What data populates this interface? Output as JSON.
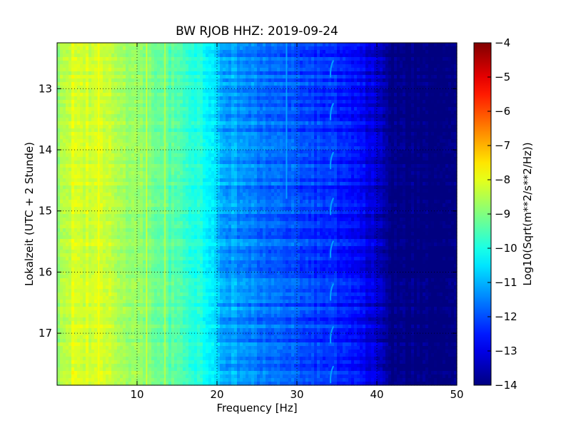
{
  "chart_data": {
    "type": "heatmap",
    "title": "BW RJOB HHZ: 2019-09-24",
    "xlabel": "Frequency [Hz]",
    "ylabel": "Lokalzeit (UTC + 2 Stunde)",
    "xlim": [
      0,
      50
    ],
    "ylim": [
      12.25,
      17.85
    ],
    "y_inverted": true,
    "x_ticks": [
      10,
      20,
      30,
      40,
      50
    ],
    "x_tick_labels": [
      "10",
      "20",
      "30",
      "40",
      "50"
    ],
    "y_ticks": [
      13,
      14,
      15,
      16,
      17
    ],
    "y_tick_labels": [
      "13",
      "14",
      "15",
      "16",
      "17"
    ],
    "grid": true,
    "colormap": "jet",
    "colorbar": {
      "label": "Log10(Sqrt(m**2/s**2/Hz))",
      "range": [
        -14,
        -4
      ],
      "ticks": [
        -4,
        -5,
        -6,
        -7,
        -8,
        -9,
        -10,
        -11,
        -12,
        -13,
        -14
      ],
      "tick_labels": [
        "−4",
        "−5",
        "−6",
        "−7",
        "−8",
        "−9",
        "−10",
        "−11",
        "−12",
        "−13",
        "−14"
      ]
    },
    "frequency_profile": {
      "frequency_hz": [
        0,
        2,
        5,
        10,
        15,
        19,
        20.5,
        25,
        30,
        35,
        39,
        41,
        42,
        50
      ],
      "level": [
        -8.8,
        -8.1,
        -8.2,
        -8.8,
        -9.5,
        -10.2,
        -11.0,
        -11.6,
        -12.0,
        -12.4,
        -13.0,
        -13.6,
        -14.0,
        -14.0
      ]
    },
    "features": [
      {
        "type": "line",
        "frequency_hz": 28.7,
        "time_start": 12.25,
        "time_end": 14.8,
        "level": -11.0
      },
      {
        "type": "line",
        "frequency_hz": 5.2,
        "time_start": 12.25,
        "time_end": 17.85,
        "level": -7.8
      },
      {
        "type": "line",
        "frequency_hz": 11.2,
        "time_start": 12.25,
        "time_end": 17.85,
        "level": -8.0
      },
      {
        "type": "line",
        "frequency_hz": 13.5,
        "time_start": 12.25,
        "time_end": 17.85,
        "level": -8.4
      },
      {
        "type": "hook",
        "frequency_hz": 34.3,
        "times": [
          12.7,
          13.4,
          14.2,
          14.95,
          15.65,
          16.35,
          17.05,
          17.7
        ],
        "level": -11.2
      }
    ]
  }
}
